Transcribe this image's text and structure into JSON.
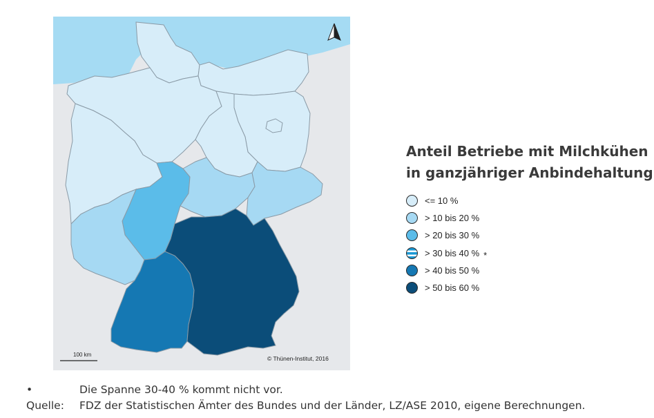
{
  "map": {
    "colors": {
      "le10": "#d7edf9",
      "10_20": "#a6d9f3",
      "20_30": "#5bbce9",
      "30_40": "#1b98d4",
      "40_50": "#1578b3",
      "50_60": "#0b4d79",
      "sea": "#a5dbf3",
      "foreign": "#e6e8eb",
      "border": "#8a9aa6"
    },
    "regions": [
      {
        "name": "Schleswig-Holstein",
        "class": "le10"
      },
      {
        "name": "Niedersachsen",
        "class": "le10"
      },
      {
        "name": "Mecklenburg-Vorpommern",
        "class": "le10"
      },
      {
        "name": "Nordrhein-Westfalen",
        "class": "le10"
      },
      {
        "name": "Sachsen-Anhalt",
        "class": "le10"
      },
      {
        "name": "Brandenburg",
        "class": "le10"
      },
      {
        "name": "Hessen",
        "class": "20_30"
      },
      {
        "name": "Thüringen",
        "class": "10_20"
      },
      {
        "name": "Sachsen",
        "class": "10_20"
      },
      {
        "name": "Rheinland-Pfalz/Saarland",
        "class": "10_20"
      },
      {
        "name": "Baden-Württemberg",
        "class": "40_50"
      },
      {
        "name": "Bayern",
        "class": "50_60"
      }
    ],
    "scale_label": "100 km",
    "copyright": "© Thünen-Institut, 2016",
    "north_arrow": "north-arrow-icon"
  },
  "legend": {
    "title_line1": "Anteil Betriebe mit Milchkühen",
    "title_line2": "in ganzjähriger Anbindehaltung",
    "items": [
      {
        "label": "<= 10 %",
        "color": "#d7edf9",
        "striped": false,
        "star": ""
      },
      {
        "label": "> 10 bis 20 %",
        "color": "#a6d9f3",
        "striped": false,
        "star": ""
      },
      {
        "label": "> 20 bis 30 %",
        "color": "#5bbce9",
        "striped": false,
        "star": ""
      },
      {
        "label": "> 30 bis 40 %",
        "color": "#1b98d4",
        "striped": true,
        "star": "*"
      },
      {
        "label": "> 40 bis 50 %",
        "color": "#1578b3",
        "striped": false,
        "star": ""
      },
      {
        "label": "> 50 bis 60 %",
        "color": "#0b4d79",
        "striped": false,
        "star": ""
      }
    ]
  },
  "footnote": {
    "bullet": "•",
    "text": "Die Spanne 30-40 % kommt nicht vor."
  },
  "source": {
    "label": "Quelle:",
    "text": "FDZ der Statistischen Ämter des Bundes und der Länder, LZ/ASE 2010, eigene Berechnungen."
  }
}
